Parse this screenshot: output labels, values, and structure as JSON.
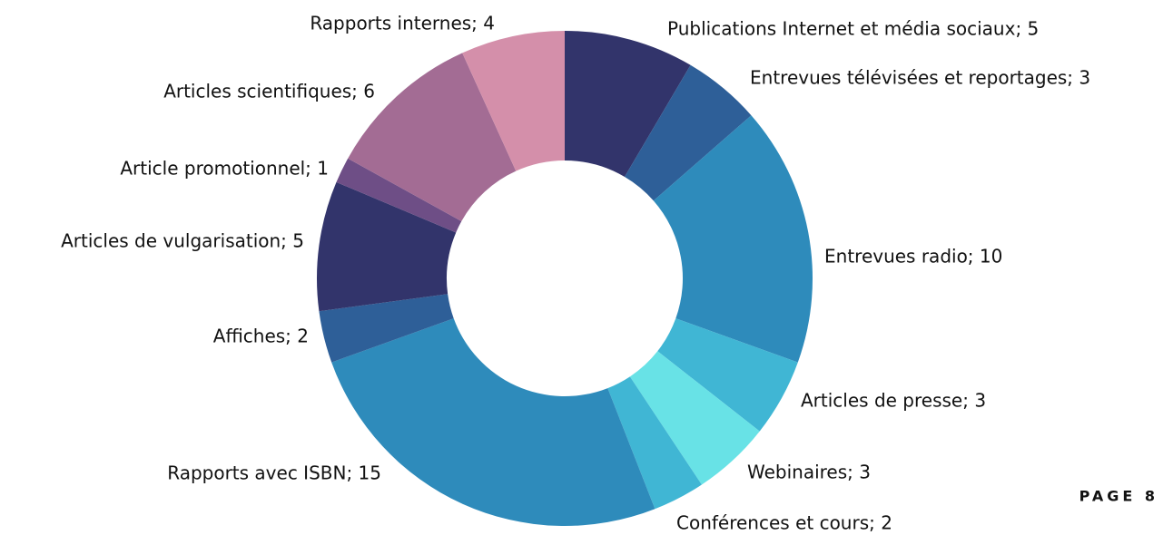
{
  "chart_data": {
    "type": "pie",
    "values": [
      5,
      3,
      10,
      3,
      3,
      2,
      15,
      2,
      5,
      1,
      6,
      4
    ],
    "value_labels": [
      "Publications Internet et média sociaux; 5",
      "Entrevues télévisées et reportages; 3",
      "Entrevues radio; 10",
      "Articles de presse; 3",
      "Webinaires; 3",
      "Conférences et cours; 2",
      "Rapports avec ISBN; 15",
      "Affiches; 2",
      "Articles de vulgarisation; 5",
      "Article promotionnel; 1",
      "Articles scientifiques; 6",
      "Rapports internes; 4"
    ],
    "colors": [
      "#32346b",
      "#2e5f98",
      "#2e8bbb",
      "#40b6d4",
      "#68e2e6",
      "#40b6d4",
      "#2e8bbb",
      "#2e5f98",
      "#32346b",
      "#6e4e86",
      "#a36c94",
      "#d48faa"
    ]
  },
  "page_label": "PAGE 8"
}
